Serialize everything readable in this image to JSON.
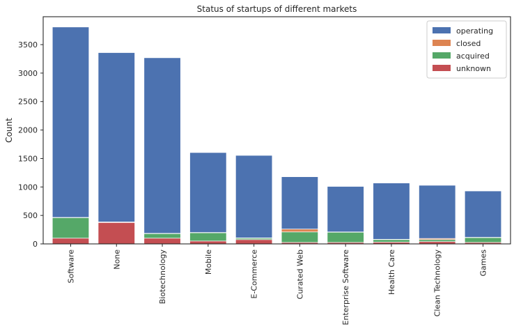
{
  "chart_data": {
    "type": "bar",
    "stacked": true,
    "title": "Status of startups of different markets",
    "xlabel": "",
    "ylabel": "Count",
    "ylim": [
      0,
      3990
    ],
    "yticks": [
      0,
      500,
      1000,
      1500,
      2000,
      2500,
      3000,
      3500
    ],
    "grid": false,
    "legend_position": "top-right",
    "categories": [
      "Software",
      "None",
      "Biotechnology",
      "Mobile",
      "E-Commerce",
      "Curated Web",
      "Enterprise Software",
      "Health Care",
      "Clean Technology",
      "Games"
    ],
    "series": [
      {
        "name": "operating",
        "color": "#4c72b0",
        "top": [
          3810,
          3360,
          3270,
          1605,
          1555,
          1180,
          1010,
          1070,
          1030,
          930
        ]
      },
      {
        "name": "closed",
        "color": "#dd8452",
        "top": [
          465,
          385,
          185,
          200,
          105,
          260,
          210,
          80,
          95,
          115
        ]
      },
      {
        "name": "acquired",
        "color": "#55a868",
        "top": [
          460,
          380,
          180,
          195,
          100,
          210,
          205,
          75,
          75,
          110
        ]
      },
      {
        "name": "unknown",
        "color": "#c44e52",
        "top": [
          100,
          375,
          100,
          50,
          75,
          25,
          25,
          30,
          40,
          25
        ]
      }
    ]
  }
}
